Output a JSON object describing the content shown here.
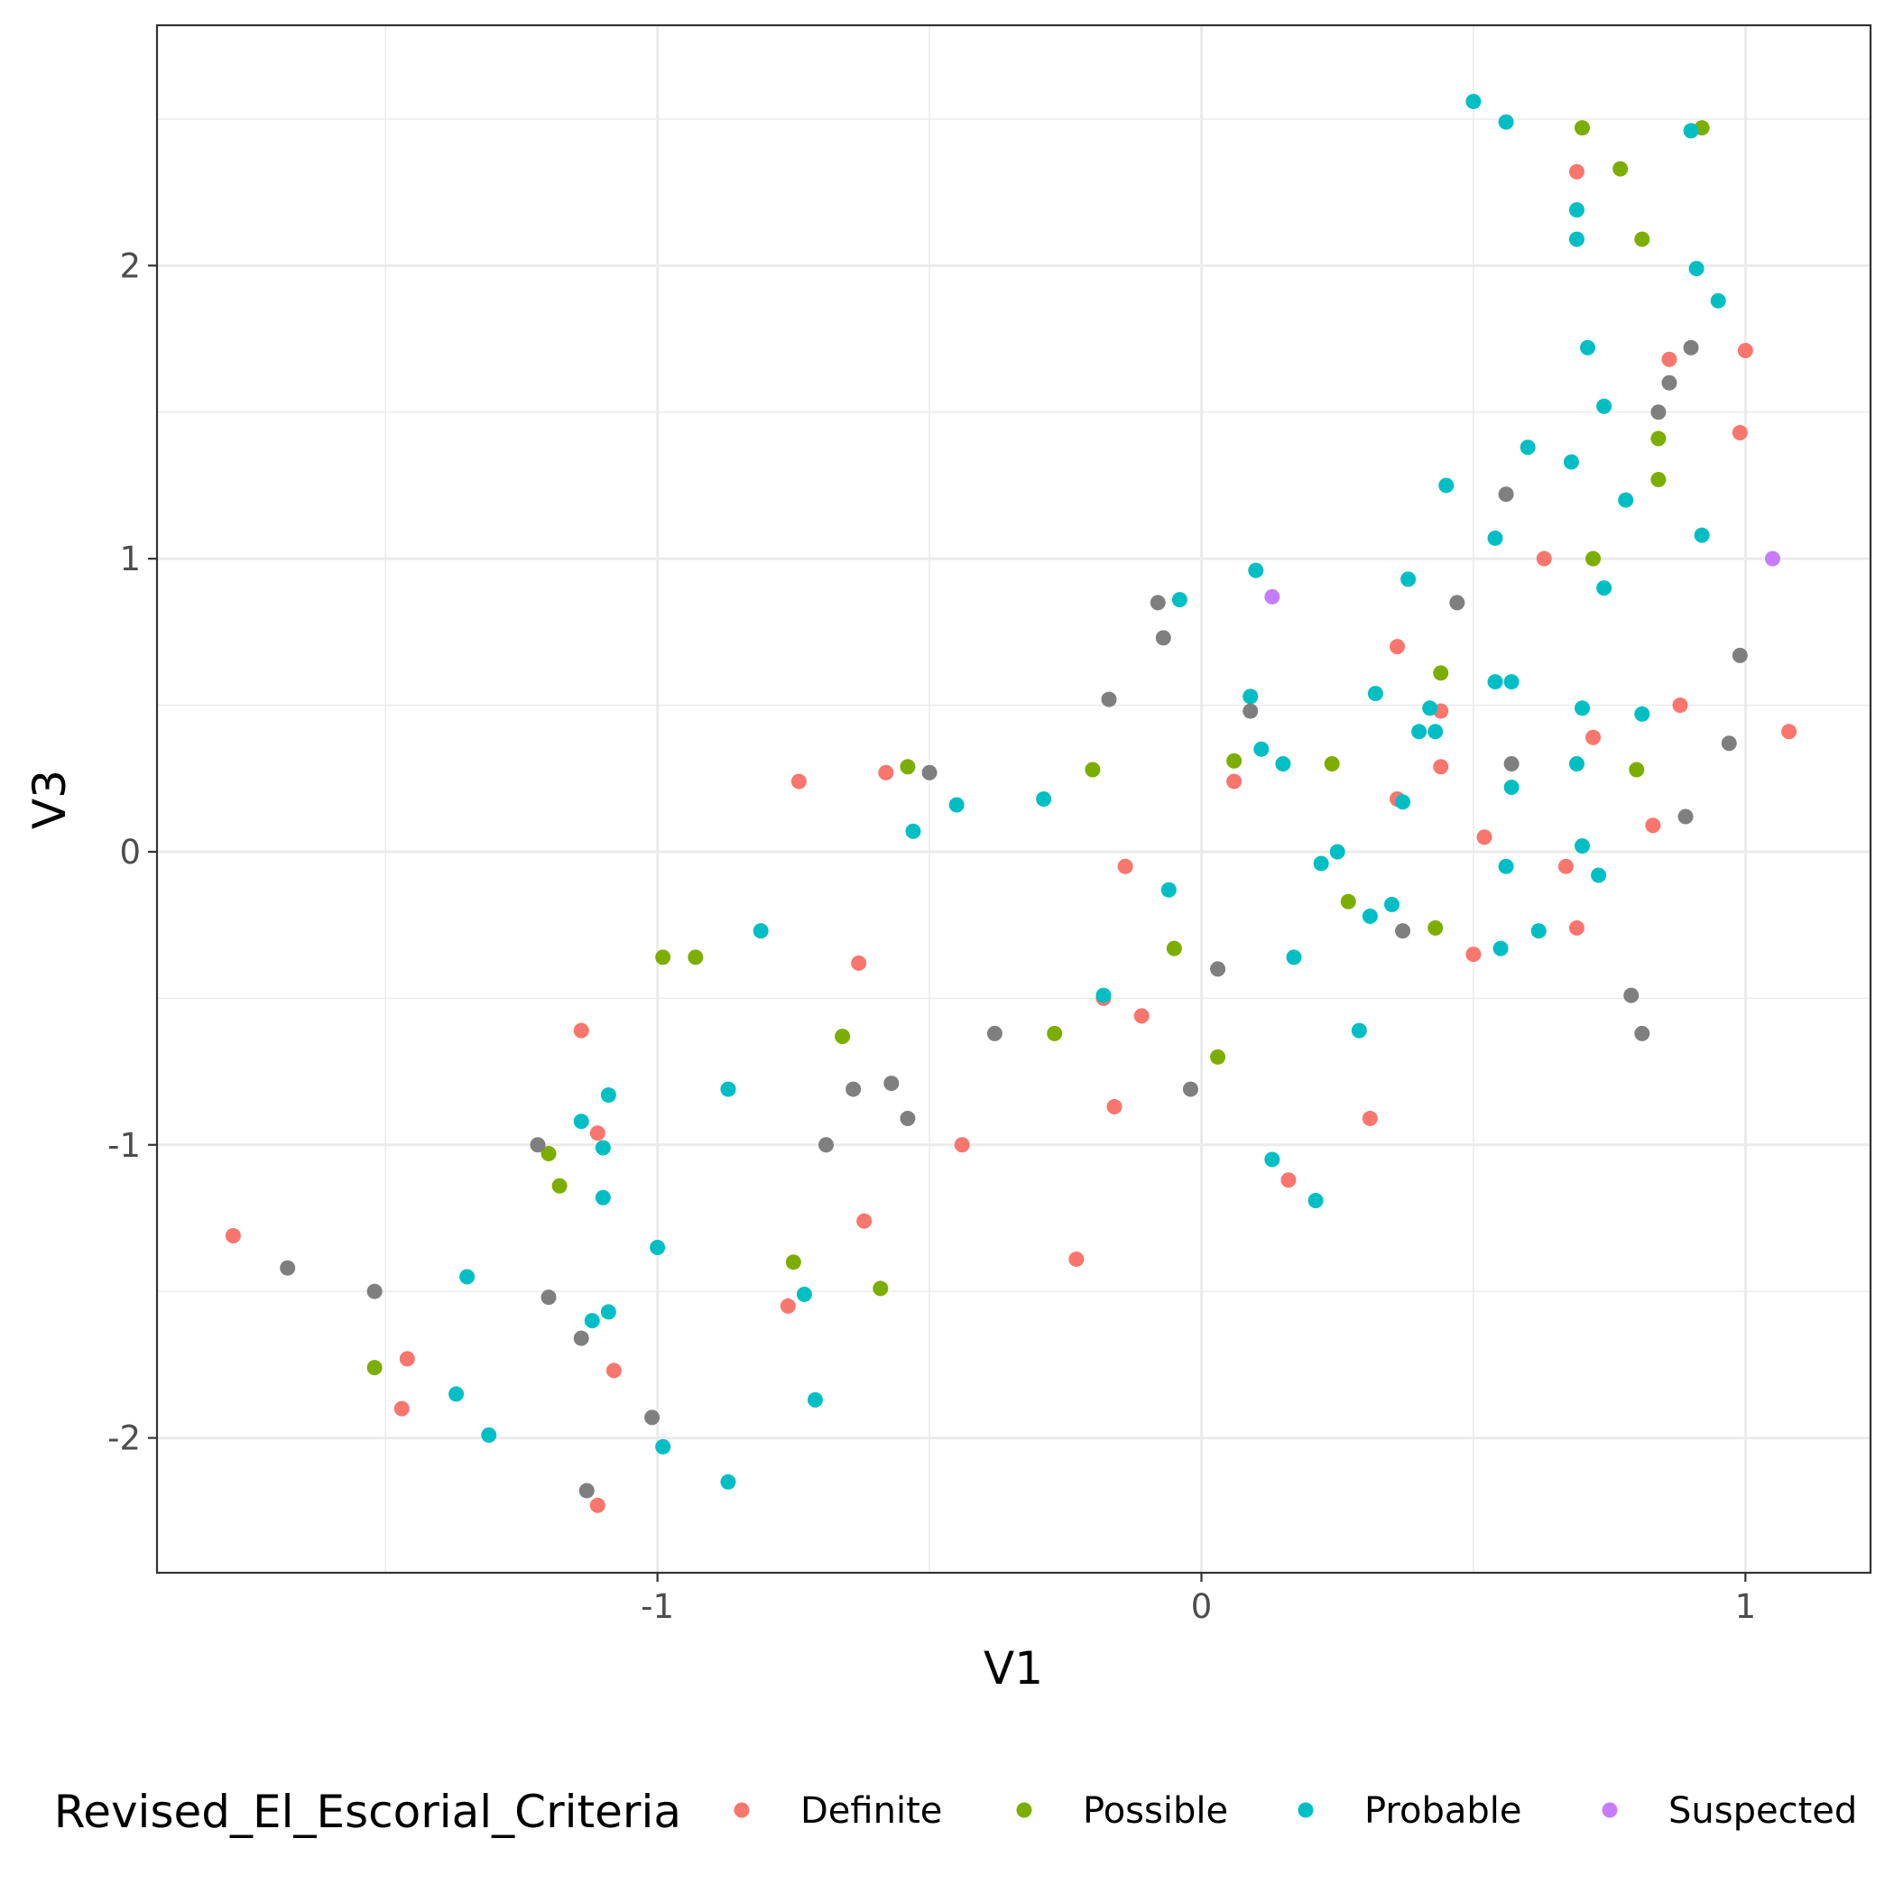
{
  "chart_data": {
    "type": "scatter",
    "title": "",
    "xlabel": "V1",
    "ylabel": "V3",
    "xlim": [
      -1.92,
      1.23
    ],
    "ylim": [
      -2.46,
      2.82
    ],
    "xticks": [
      -1,
      0,
      1
    ],
    "xtick_labels": [
      "-1",
      "0",
      "1"
    ],
    "yticks": [
      -2,
      -1,
      0,
      1,
      2
    ],
    "ytick_labels": [
      "-2",
      "-1",
      "0",
      "1",
      "2"
    ],
    "grid": true,
    "legend": {
      "title": "Revised_El_Escorial_Criteria",
      "position": "bottom",
      "entries": [
        "Definite",
        "Possible",
        "Probable",
        "Suspected"
      ]
    },
    "series": [
      {
        "name": "Definite",
        "color": "#F8766D",
        "points": [
          [
            -1.78,
            -1.31
          ],
          [
            -1.46,
            -1.73
          ],
          [
            -1.47,
            -1.9
          ],
          [
            -1.14,
            -0.61
          ],
          [
            -1.11,
            -0.96
          ],
          [
            -1.08,
            -1.77
          ],
          [
            -1.11,
            -2.23
          ],
          [
            -0.74,
            0.24
          ],
          [
            -0.58,
            0.27
          ],
          [
            -0.63,
            -0.38
          ],
          [
            -0.62,
            -1.26
          ],
          [
            -0.76,
            -1.55
          ],
          [
            -0.44,
            -1.0
          ],
          [
            -0.14,
            -0.05
          ],
          [
            -0.18,
            -0.5
          ],
          [
            -0.11,
            -0.56
          ],
          [
            -0.16,
            -0.87
          ],
          [
            -0.23,
            -1.39
          ],
          [
            0.06,
            0.24
          ],
          [
            0.16,
            -1.12
          ],
          [
            0.36,
            0.7
          ],
          [
            0.36,
            0.18
          ],
          [
            0.31,
            -0.91
          ],
          [
            0.44,
            0.48
          ],
          [
            0.44,
            0.29
          ],
          [
            0.52,
            0.05
          ],
          [
            0.5,
            -0.35
          ],
          [
            0.63,
            1.0
          ],
          [
            0.69,
            2.32
          ],
          [
            0.72,
            0.39
          ],
          [
            0.67,
            -0.05
          ],
          [
            0.69,
            -0.26
          ],
          [
            0.86,
            1.68
          ],
          [
            0.88,
            0.5
          ],
          [
            0.83,
            0.09
          ],
          [
            0.99,
            1.43
          ],
          [
            1.0,
            1.71
          ],
          [
            1.08,
            0.41
          ]
        ]
      },
      {
        "name": "Possible",
        "color": "#7CAE00",
        "points": [
          [
            -1.52,
            -1.76
          ],
          [
            -1.2,
            -1.03
          ],
          [
            -1.18,
            -1.14
          ],
          [
            -0.99,
            -0.36
          ],
          [
            -0.93,
            -0.36
          ],
          [
            -0.75,
            -1.4
          ],
          [
            -0.66,
            -0.63
          ],
          [
            -0.59,
            -1.49
          ],
          [
            -0.54,
            0.29
          ],
          [
            -0.27,
            -0.62
          ],
          [
            -0.2,
            0.28
          ],
          [
            -0.05,
            -0.33
          ],
          [
            0.03,
            -0.7
          ],
          [
            0.06,
            0.31
          ],
          [
            0.24,
            0.3
          ],
          [
            0.27,
            -0.17
          ],
          [
            0.43,
            -0.26
          ],
          [
            0.44,
            0.61
          ],
          [
            0.7,
            2.47
          ],
          [
            0.72,
            1.0
          ],
          [
            0.77,
            2.33
          ],
          [
            0.8,
            0.28
          ],
          [
            0.81,
            2.09
          ],
          [
            0.84,
            1.41
          ],
          [
            0.84,
            1.27
          ],
          [
            0.92,
            2.47
          ]
        ]
      },
      {
        "name": "Probable",
        "color": "#00BFC4",
        "points": [
          [
            -1.37,
            -1.85
          ],
          [
            -1.35,
            -1.45
          ],
          [
            -1.31,
            -1.99
          ],
          [
            -1.14,
            -0.92
          ],
          [
            -1.12,
            -1.6
          ],
          [
            -1.1,
            -1.01
          ],
          [
            -1.1,
            -1.18
          ],
          [
            -1.09,
            -0.83
          ],
          [
            -1.09,
            -1.57
          ],
          [
            -1.0,
            -1.35
          ],
          [
            -0.99,
            -2.03
          ],
          [
            -0.87,
            -0.81
          ],
          [
            -0.87,
            -2.15
          ],
          [
            -0.81,
            -0.27
          ],
          [
            -0.73,
            -1.51
          ],
          [
            -0.71,
            -1.87
          ],
          [
            -0.53,
            0.07
          ],
          [
            -0.45,
            0.16
          ],
          [
            -0.29,
            0.18
          ],
          [
            -0.18,
            -0.49
          ],
          [
            -0.06,
            -0.13
          ],
          [
            -0.04,
            0.86
          ],
          [
            0.09,
            0.53
          ],
          [
            0.1,
            0.96
          ],
          [
            0.11,
            0.35
          ],
          [
            0.13,
            -1.05
          ],
          [
            0.15,
            0.3
          ],
          [
            0.17,
            -0.36
          ],
          [
            0.21,
            -1.19
          ],
          [
            0.22,
            -0.04
          ],
          [
            0.25,
            0.0
          ],
          [
            0.29,
            -0.61
          ],
          [
            0.31,
            -0.22
          ],
          [
            0.32,
            0.54
          ],
          [
            0.35,
            -0.18
          ],
          [
            0.37,
            0.17
          ],
          [
            0.38,
            0.93
          ],
          [
            0.4,
            0.41
          ],
          [
            0.42,
            0.49
          ],
          [
            0.43,
            0.41
          ],
          [
            0.45,
            1.25
          ],
          [
            0.5,
            2.56
          ],
          [
            0.54,
            1.07
          ],
          [
            0.54,
            0.58
          ],
          [
            0.55,
            -0.33
          ],
          [
            0.56,
            -0.05
          ],
          [
            0.56,
            2.49
          ],
          [
            0.57,
            0.58
          ],
          [
            0.57,
            0.22
          ],
          [
            0.6,
            1.38
          ],
          [
            0.62,
            -0.27
          ],
          [
            0.68,
            1.33
          ],
          [
            0.69,
            2.19
          ],
          [
            0.69,
            2.09
          ],
          [
            0.69,
            0.3
          ],
          [
            0.7,
            0.49
          ],
          [
            0.7,
            0.02
          ],
          [
            0.71,
            1.72
          ],
          [
            0.73,
            -0.08
          ],
          [
            0.74,
            1.52
          ],
          [
            0.74,
            0.9
          ],
          [
            0.78,
            1.2
          ],
          [
            0.81,
            0.47
          ],
          [
            0.9,
            2.46
          ],
          [
            0.91,
            1.99
          ],
          [
            0.92,
            1.08
          ],
          [
            0.95,
            1.88
          ]
        ]
      },
      {
        "name": "",
        "color": "#7F7F7F",
        "points": [
          [
            -1.68,
            -1.42
          ],
          [
            -1.52,
            -1.5
          ],
          [
            -1.22,
            -1.0
          ],
          [
            -1.2,
            -1.52
          ],
          [
            -1.14,
            -1.66
          ],
          [
            -1.01,
            -1.93
          ],
          [
            -1.13,
            -2.18
          ],
          [
            -0.69,
            -1.0
          ],
          [
            -0.64,
            -0.81
          ],
          [
            -0.57,
            -0.79
          ],
          [
            -0.54,
            -0.91
          ],
          [
            -0.5,
            0.27
          ],
          [
            -0.38,
            -0.62
          ],
          [
            -0.17,
            0.52
          ],
          [
            -0.08,
            0.85
          ],
          [
            -0.07,
            0.73
          ],
          [
            -0.02,
            -0.81
          ],
          [
            0.03,
            -0.4
          ],
          [
            0.09,
            0.48
          ],
          [
            0.37,
            -0.27
          ],
          [
            0.47,
            0.85
          ],
          [
            0.56,
            1.22
          ],
          [
            0.57,
            0.3
          ],
          [
            0.79,
            -0.49
          ],
          [
            0.81,
            -0.62
          ],
          [
            0.84,
            1.5
          ],
          [
            0.86,
            1.6
          ],
          [
            0.89,
            0.12
          ],
          [
            0.9,
            1.72
          ],
          [
            0.97,
            0.37
          ],
          [
            0.99,
            0.67
          ]
        ]
      },
      {
        "name": "Suspected",
        "color": "#C77CFF",
        "points": [
          [
            0.13,
            0.87
          ],
          [
            1.05,
            1.0
          ]
        ]
      }
    ]
  }
}
